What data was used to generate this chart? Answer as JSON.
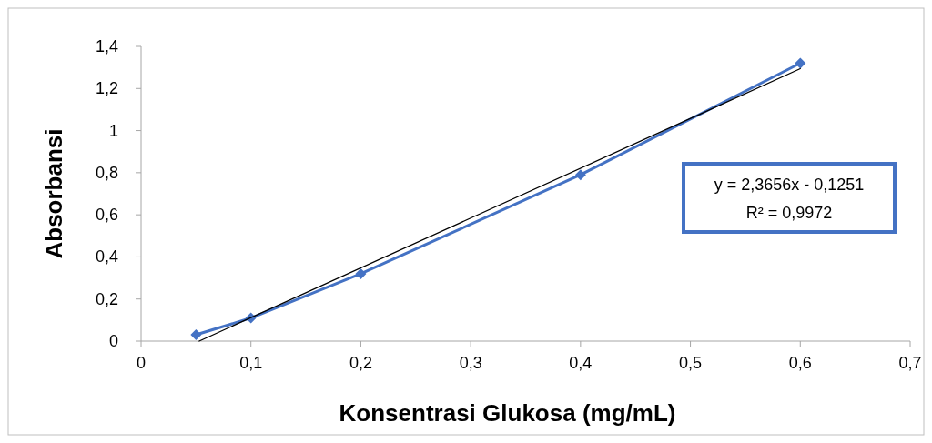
{
  "chart_data": {
    "type": "line",
    "xlabel": "Konsentrasi Glukosa (mg/mL)",
    "ylabel": "Absorbansi",
    "x": [
      0.05,
      0.1,
      0.2,
      0.4,
      0.6
    ],
    "series": [
      {
        "color": "#4472c4",
        "marker": "diamond",
        "values": [
          0.03,
          0.11,
          0.32,
          0.79,
          1.32
        ]
      },
      {
        "color": "#000000",
        "marker": "none",
        "x": [
          0.0529,
          0.6
        ],
        "values": [
          0,
          1.294
        ]
      }
    ],
    "annotations": [
      "y = 2,3656x - 0,1251",
      "R² = 0,9972"
    ],
    "xlim": [
      0,
      0.7
    ],
    "ylim": [
      0,
      1.4
    ],
    "xticks": [
      0,
      {
        "value": 0.1,
        "label": "0,1"
      },
      {
        "value": 0.2,
        "label": "0,2"
      },
      {
        "value": 0.3,
        "label": "0,3"
      },
      {
        "value": 0.4,
        "label": "0,4"
      },
      {
        "value": 0.5,
        "label": "0,5"
      },
      {
        "value": 0.6,
        "label": "0,6"
      },
      {
        "value": 0.7,
        "label": "0,7"
      }
    ],
    "yticks": [
      0,
      {
        "value": 0.2,
        "label": "0,2"
      },
      {
        "value": 0.4,
        "label": "0,4"
      },
      {
        "value": 0.6,
        "label": "0,6"
      },
      {
        "value": 0.8,
        "label": "0,8"
      },
      1,
      {
        "value": 1.2,
        "label": "1,2"
      },
      {
        "value": 1.4,
        "label": "1,4"
      }
    ]
  }
}
